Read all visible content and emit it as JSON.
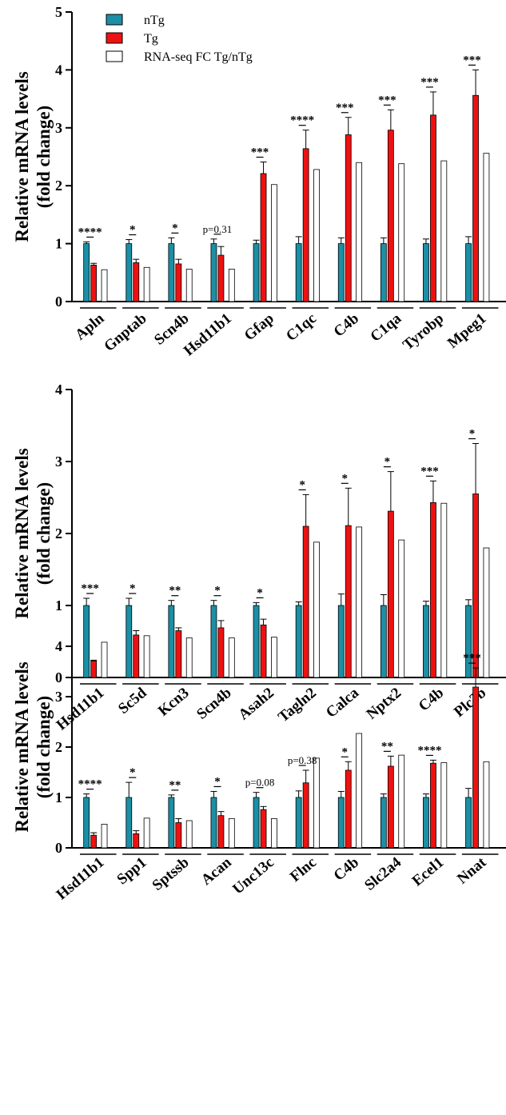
{
  "colors": {
    "nTg": "#1b8fa5",
    "Tg": "#ee1111",
    "RNAseq": "#ffffff",
    "stroke": "#000000"
  },
  "legend": {
    "nTg": "nTg",
    "Tg": "Tg",
    "RNAseq": "RNA-seq FC Tg/nTg"
  },
  "ylabel_line1": "Relative mRNA levels",
  "ylabel_line2": "(fold change)",
  "chart_data": [
    {
      "type": "bar",
      "ylim": [
        0,
        5
      ],
      "yticks": [
        0,
        1,
        2,
        3,
        4,
        5
      ],
      "ylabel": "Relative mRNA levels (fold change)",
      "legend_shown": true,
      "categories": [
        "Apln",
        "Gnptab",
        "Scn4b",
        "Hsd11b1",
        "Gfap",
        "C1qc",
        "C4b",
        "C1qa",
        "Tyrobp",
        "Mpeg1"
      ],
      "series": [
        {
          "name": "nTg",
          "values": [
            1.0,
            1.0,
            1.0,
            1.0,
            1.0,
            1.0,
            1.0,
            1.0,
            1.0,
            1.0
          ],
          "errors": [
            0.03,
            0.07,
            0.1,
            0.08,
            0.06,
            0.12,
            0.1,
            0.1,
            0.08,
            0.12
          ]
        },
        {
          "name": "Tg",
          "values": [
            0.63,
            0.67,
            0.65,
            0.8,
            2.21,
            2.64,
            2.88,
            2.96,
            3.22,
            3.56
          ],
          "errors": [
            0.03,
            0.06,
            0.08,
            0.15,
            0.2,
            0.32,
            0.3,
            0.35,
            0.4,
            0.44
          ]
        },
        {
          "name": "RNA-seq FC Tg/nTg",
          "values": [
            0.55,
            0.59,
            0.56,
            0.56,
            2.02,
            2.28,
            2.4,
            2.38,
            2.43,
            2.56
          ]
        }
      ],
      "significance": [
        "****",
        "*",
        "*",
        "p=0.31",
        "***",
        "****",
        "***",
        "***",
        "***",
        "***"
      ]
    },
    {
      "type": "bar",
      "ylim": [
        0,
        4
      ],
      "yticks": [
        0,
        1,
        2,
        3,
        4
      ],
      "ylabel": "Relative mRNA levels (fold change)",
      "legend_shown": false,
      "categories": [
        "Hsd11b1",
        "Sc5d",
        "Kcn3",
        "Scn4b",
        "Asah2",
        "Tagln2",
        "Calca",
        "Nptx2",
        "C4b",
        "Plc3b"
      ],
      "series": [
        {
          "name": "nTg",
          "values": [
            1.0,
            1.0,
            1.0,
            1.0,
            1.0,
            1.0,
            1.0,
            1.0,
            1.0,
            1.0
          ],
          "errors": [
            0.1,
            0.1,
            0.07,
            0.07,
            0.04,
            0.05,
            0.16,
            0.15,
            0.06,
            0.08
          ]
        },
        {
          "name": "Tg",
          "values": [
            0.23,
            0.59,
            0.65,
            0.69,
            0.73,
            2.1,
            2.11,
            2.31,
            2.43,
            2.55
          ],
          "errors": [
            0.01,
            0.06,
            0.04,
            0.1,
            0.08,
            0.44,
            0.52,
            0.55,
            0.3,
            0.7
          ]
        },
        {
          "name": "RNA-seq FC Tg/nTg",
          "values": [
            0.49,
            0.58,
            0.55,
            0.55,
            0.56,
            1.88,
            2.09,
            1.91,
            2.42,
            1.8
          ]
        }
      ],
      "significance": [
        "***",
        "*",
        "**",
        "*",
        "*",
        "*",
        "*",
        "*",
        "***",
        "*"
      ]
    },
    {
      "type": "bar",
      "ylim": [
        0,
        4
      ],
      "yticks": [
        0,
        1,
        2,
        3,
        4
      ],
      "ylabel": "Relative mRNA levels (fold change)",
      "legend_shown": false,
      "categories": [
        "Hsd11b1",
        "Spp1",
        "Sptssb",
        "Acan",
        "Unc13c",
        "Flnc",
        "C4b",
        "Slc2a4",
        "Ecel1",
        "Nnat"
      ],
      "series": [
        {
          "name": "nTg",
          "values": [
            1.0,
            1.0,
            1.0,
            1.0,
            1.0,
            1.0,
            1.0,
            1.0,
            1.0,
            1.0
          ],
          "errors": [
            0.07,
            0.3,
            0.05,
            0.12,
            0.1,
            0.13,
            0.12,
            0.07,
            0.07,
            0.18
          ]
        },
        {
          "name": "Tg",
          "values": [
            0.25,
            0.28,
            0.5,
            0.64,
            0.76,
            1.29,
            1.54,
            1.62,
            1.68,
            3.19
          ],
          "errors": [
            0.05,
            0.06,
            0.08,
            0.08,
            0.06,
            0.25,
            0.17,
            0.2,
            0.06,
            0.38
          ]
        },
        {
          "name": "RNA-seq FC Tg/nTg",
          "values": [
            0.47,
            0.59,
            0.54,
            0.58,
            0.58,
            1.78,
            2.27,
            1.84,
            1.69,
            1.71
          ]
        }
      ],
      "significance": [
        "****",
        "*",
        "**",
        "*",
        "p=0.08",
        "p=0.38",
        "*",
        "**",
        "****",
        "***"
      ]
    }
  ]
}
